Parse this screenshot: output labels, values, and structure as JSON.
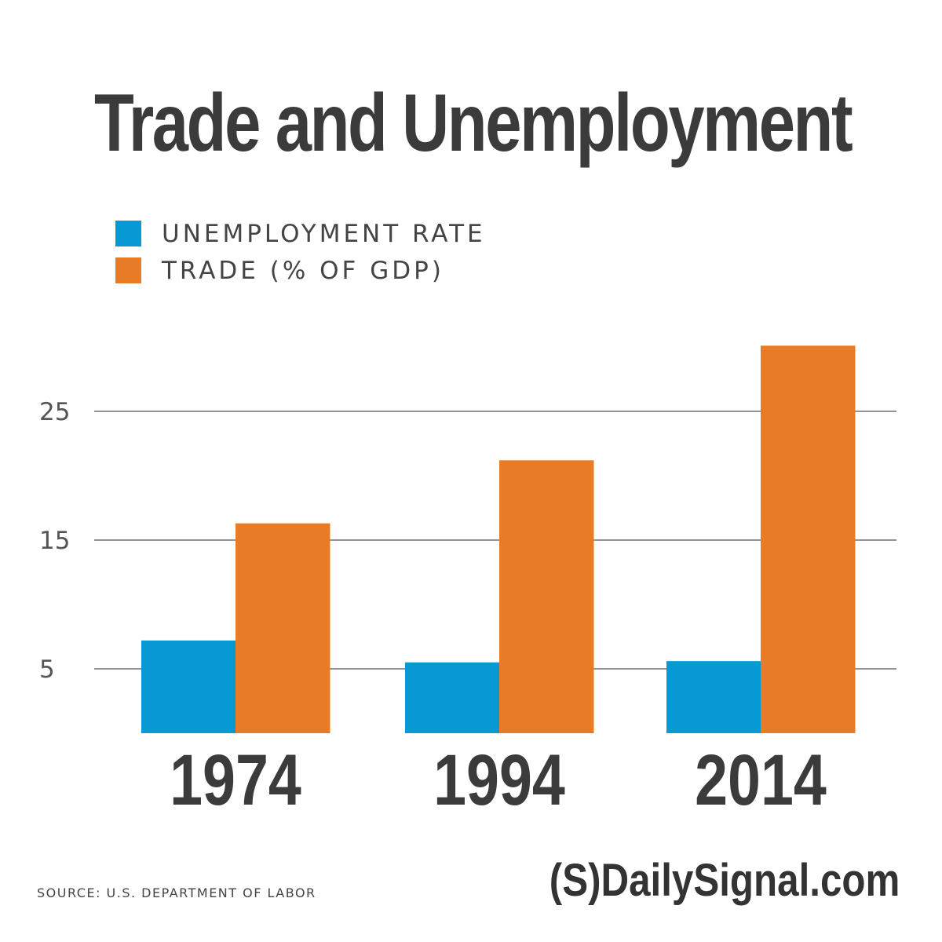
{
  "colors": {
    "unemployment": "#0898d3",
    "trade": "#e87c26",
    "text": "#3b3b3b",
    "grid": "#555555",
    "tick": "#555555"
  },
  "chart_data": {
    "type": "bar",
    "title": "Trade and Unemployment",
    "categories": [
      "1974",
      "1994",
      "2014"
    ],
    "series": [
      {
        "name": "UNEMPLOYMENT RATE",
        "values": [
          7.2,
          5.5,
          5.6
        ],
        "color": "#0898d3"
      },
      {
        "name": "TRADE (% OF GDP)",
        "values": [
          16.3,
          21.2,
          30.1
        ],
        "color": "#e87c26"
      }
    ],
    "yticks": [
      5,
      15,
      25
    ],
    "ylim": [
      0,
      30
    ],
    "grid": true,
    "legend": "top-left",
    "source": "SOURCE: U.S. DEPARTMENT OF LABOR"
  },
  "brand": "(S)DailySignal.com"
}
